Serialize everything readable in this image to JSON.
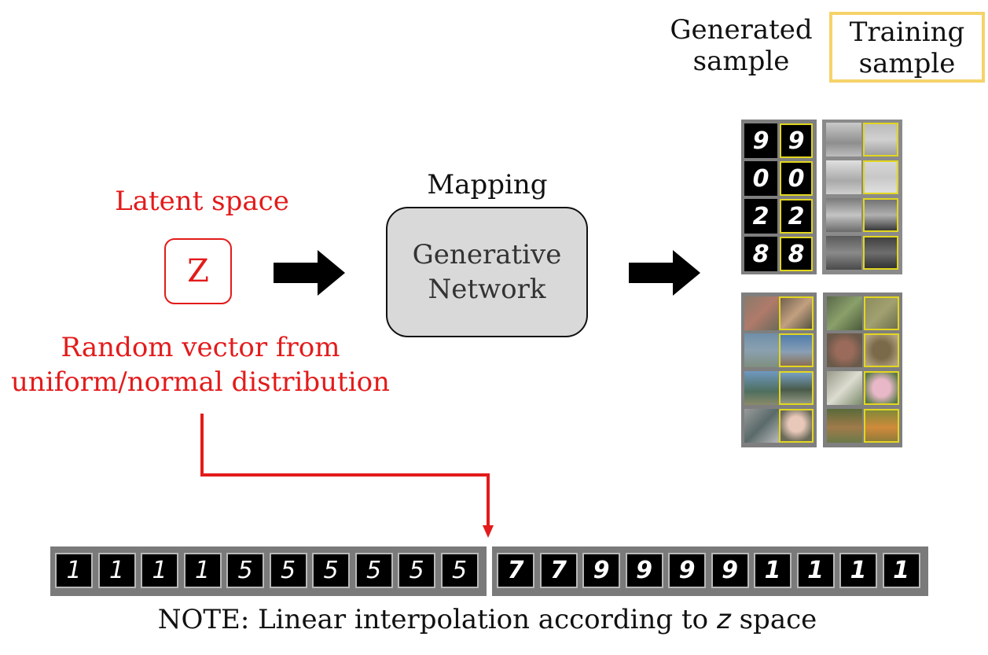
{
  "legend": {
    "generated_line1": "Generated",
    "generated_line2": "sample",
    "training_line1": "Training",
    "training_line2": "sample",
    "training_border_color": "#f5d36a"
  },
  "latent": {
    "title": "Latent space",
    "z_symbol": "Z",
    "random_vector_label": "Random vector",
    "random_vector_rest": " from",
    "distribution_text": "uniform/normal distribution",
    "color": "#e31b1b"
  },
  "network": {
    "mapping_label": "Mapping",
    "line1": "Generative",
    "line2": "Network"
  },
  "samples": {
    "digit_pairs": [
      [
        "9",
        "9"
      ],
      [
        "0",
        "0"
      ],
      [
        "2",
        "2"
      ],
      [
        "8",
        "8"
      ]
    ]
  },
  "interpolation": {
    "strip1": [
      "1",
      "1",
      "1",
      "1",
      "5",
      "5",
      "5",
      "5",
      "5",
      "5"
    ],
    "strip2": [
      "7",
      "7",
      "9",
      "9",
      "9",
      "9",
      "1",
      "1",
      "1",
      "1"
    ]
  },
  "note": {
    "prefix": "NOTE: Linear interpolation according to ",
    "z": "z",
    "suffix": " space"
  }
}
